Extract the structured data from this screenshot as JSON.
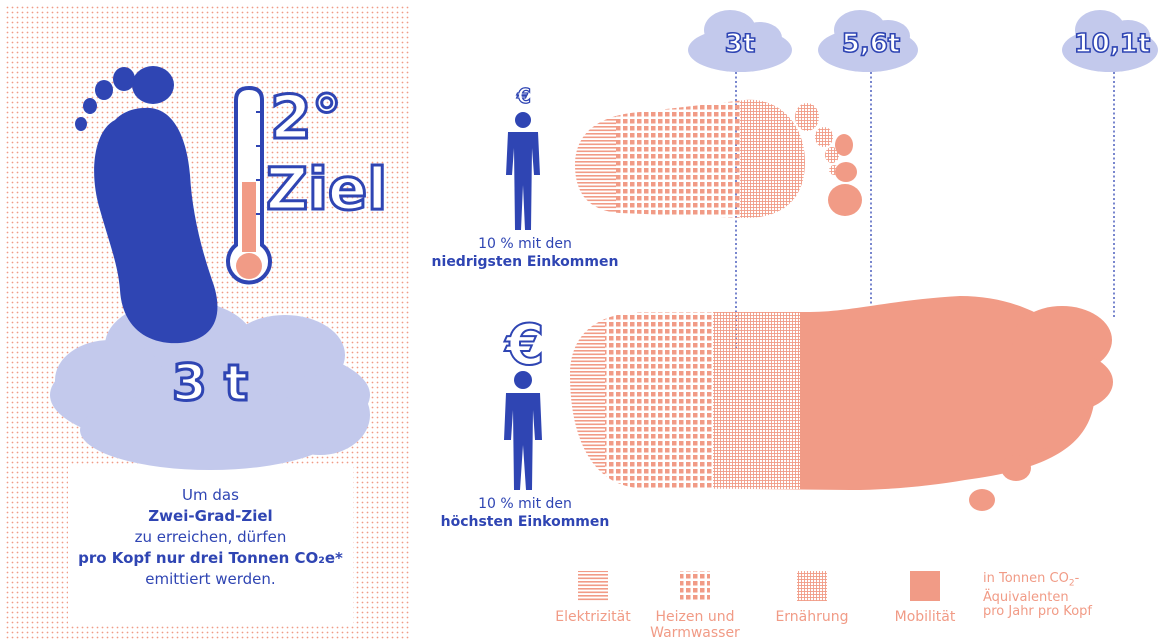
{
  "colors": {
    "blue": "#2f45b3",
    "salmon": "#f19b86",
    "cloud": "#c3c9ec",
    "cloud_text": "#ffffff"
  },
  "left_panel": {
    "temperature_label": "2°",
    "goal_label": "Ziel",
    "cloud_value": "3 t",
    "text": {
      "line1": "Um das",
      "line2": "Zwei-Grad-Ziel",
      "line3": "zu erreichen, dürfen",
      "line4": "pro Kopf nur drei Tonnen CO₂e*",
      "line5": "emittiert werden."
    }
  },
  "clouds": [
    "3t",
    "5,6t",
    "10,1t"
  ],
  "groups": {
    "low": {
      "line1": "10 % mit den",
      "line2": "niedrigsten Einkommen",
      "currency": "€"
    },
    "high": {
      "line1": "10 % mit den",
      "line2": "höchsten Einkommen",
      "currency": "€"
    }
  },
  "chart_data": {
    "type": "bar",
    "categories": [
      "10 % mit den niedrigsten Einkommen",
      "10 % mit den höchsten Einkommen"
    ],
    "series_labels": [
      "Elektrizität",
      "Heizen und Warmwasser",
      "Ernährung",
      "Mobilität"
    ],
    "values": [
      3,
      10.1
    ],
    "reference_markers": [
      3,
      5.6,
      10.1
    ],
    "unit": "in Tonnen CO2-Äquivalenten pro Jahr pro Kopf"
  },
  "legend": {
    "items": [
      {
        "label": "Elektrizität"
      },
      {
        "label": "Heizen und Warmwasser",
        "label_line1": "Heizen und",
        "label_line2": "Warmwasser"
      },
      {
        "label": "Ernährung"
      },
      {
        "label": "Mobilität"
      }
    ],
    "unit_line1": "in Tonnen CO",
    "unit_sub": "2",
    "unit_dash": "-",
    "unit_line2": "Äquivalenten",
    "unit_line3": "pro Jahr pro Kopf"
  }
}
